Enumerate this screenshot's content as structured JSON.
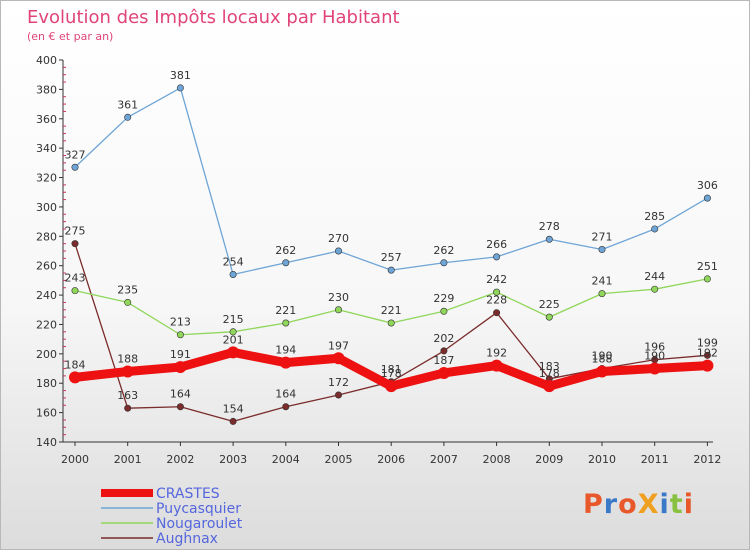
{
  "chart_data": {
    "type": "line",
    "title": "Evolution des Impôts locaux par Habitant",
    "subtitle": "(en € et par an)",
    "categories": [
      "2000",
      "2001",
      "2002",
      "2003",
      "2004",
      "2005",
      "2006",
      "2007",
      "2008",
      "2009",
      "2010",
      "2011",
      "2012"
    ],
    "ylim": [
      140,
      400
    ],
    "yticks": [
      140,
      160,
      180,
      200,
      220,
      240,
      260,
      280,
      300,
      320,
      340,
      360,
      380,
      400
    ],
    "grid": false,
    "legend_position": "bottom-left",
    "series": [
      {
        "name": "Aughnax",
        "color": "#7a2b2b",
        "values": [
          275,
          163,
          164,
          154,
          164,
          172,
          181,
          202,
          228,
          183,
          190,
          196,
          199
        ]
      },
      {
        "name": "Nougaroulet",
        "color": "#8fd65a",
        "values": [
          243,
          235,
          213,
          215,
          221,
          230,
          221,
          229,
          242,
          225,
          241,
          244,
          251
        ]
      },
      {
        "name": "Puycasquier",
        "color": "#6ea5d6",
        "values": [
          327,
          361,
          381,
          254,
          262,
          270,
          257,
          262,
          266,
          278,
          271,
          285,
          306
        ]
      },
      {
        "name": "CRASTES",
        "color": "#ee1111",
        "values": [
          184,
          188,
          191,
          201,
          194,
          197,
          178,
          187,
          192,
          178,
          188,
          190,
          192
        ]
      }
    ]
  },
  "legend": [
    {
      "label": "CRASTES",
      "color": "#ee1111"
    },
    {
      "label": "Puycasquier",
      "color": "#6ea5d6"
    },
    {
      "label": "Nougaroulet",
      "color": "#8fd65a"
    },
    {
      "label": "Aughnax",
      "color": "#7a2b2b"
    }
  ],
  "legend_text_color": "#5566dd",
  "logo": {
    "text": "ProXiti",
    "colors": [
      "#e8582a",
      "#3a78c8",
      "#e8582a",
      "#f0a020",
      "#3a78c8",
      "#88c040",
      "#e8582a"
    ]
  }
}
